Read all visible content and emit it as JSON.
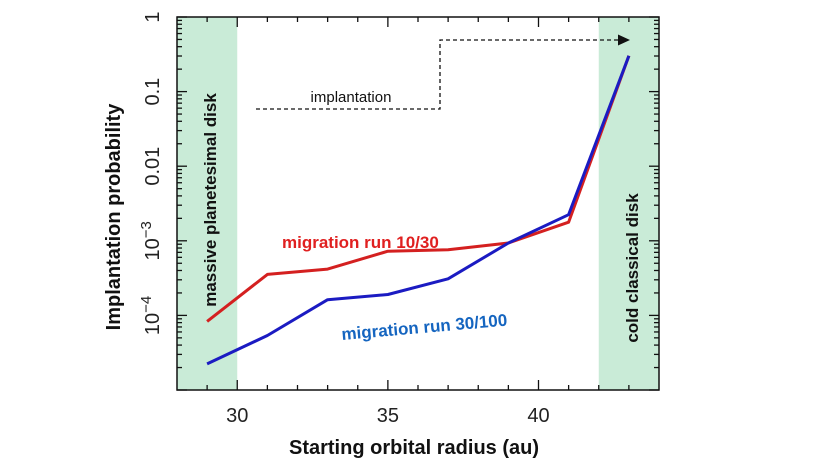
{
  "chart_data": {
    "type": "line",
    "xlabel": "Starting orbital radius (au)",
    "ylabel": "Implantation probability",
    "xlim": [
      28,
      44
    ],
    "ylim_log10": [
      -5,
      0
    ],
    "y_scale": "log",
    "x_ticks": [
      {
        "value": 30,
        "label": "30"
      },
      {
        "value": 35,
        "label": "35"
      },
      {
        "value": 40,
        "label": "40"
      }
    ],
    "y_ticks": [
      {
        "exp": 0,
        "label": "1"
      },
      {
        "exp": -1,
        "label": "0.1"
      },
      {
        "exp": -2,
        "label": "0.01"
      },
      {
        "exp": -3,
        "base": "10",
        "sup": "−3"
      },
      {
        "exp": -4,
        "base": "10",
        "sup": "−4"
      }
    ],
    "series": [
      {
        "name": "migration run 10/30",
        "color": "#d42020",
        "x": [
          29,
          31,
          33,
          35,
          37,
          39,
          41,
          43
        ],
        "log10_y": [
          -4.08,
          -3.45,
          -3.38,
          -3.14,
          -3.12,
          -3.03,
          -2.75,
          -0.52
        ]
      },
      {
        "name": "migration run 30/100",
        "color": "#1b1bc2",
        "x": [
          29,
          31,
          33,
          35,
          37,
          39,
          41,
          43
        ],
        "log10_y": [
          -4.65,
          -4.27,
          -3.79,
          -3.72,
          -3.51,
          -3.03,
          -2.65,
          -0.52
        ]
      }
    ],
    "series_label_colors": [
      "#e02020",
      "#1565c0"
    ],
    "bands": [
      {
        "name": "massive planetesimal disk",
        "x_start": 28,
        "x_end": 30,
        "color": "#c9ebd7"
      },
      {
        "name": "cold classical disk",
        "x_start": 42,
        "x_end": 44,
        "color": "#c9ebd7"
      }
    ],
    "annotation": {
      "text": "implantation",
      "arrow": "dashed"
    }
  }
}
